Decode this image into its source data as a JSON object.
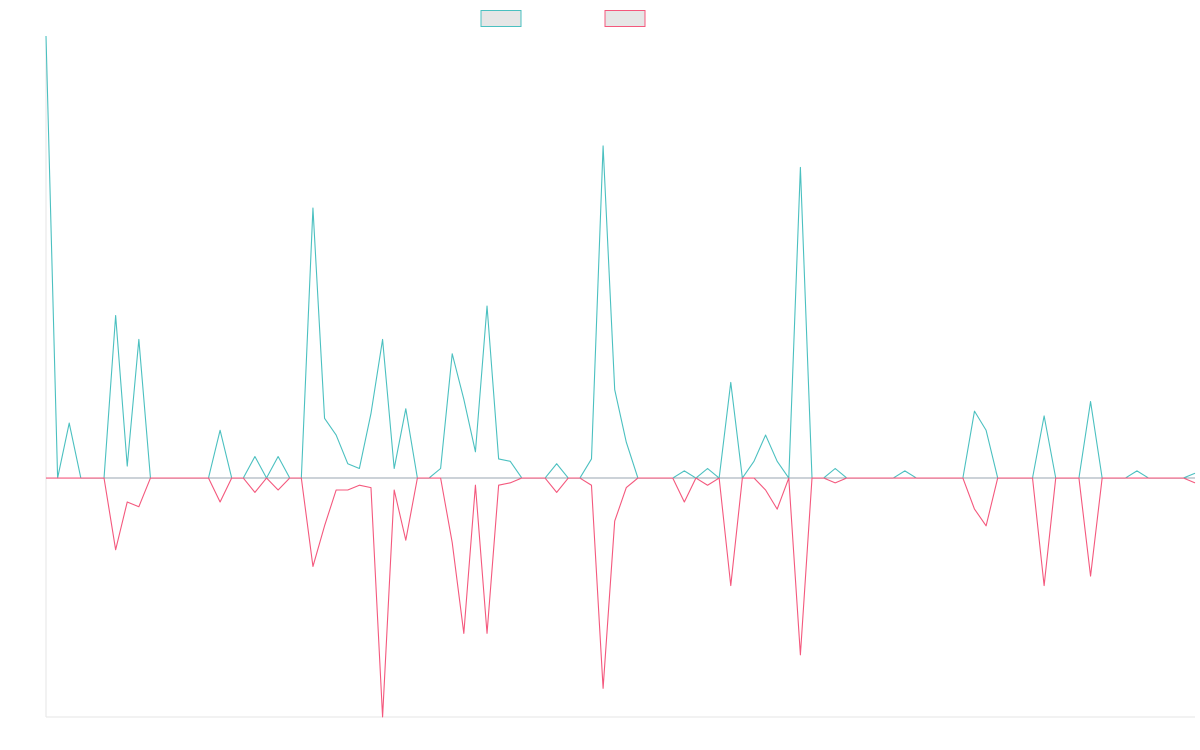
{
  "chart_data": {
    "type": "line",
    "title": "",
    "xlabel": "",
    "ylabel": "",
    "grid": false,
    "legend_position": "top-center",
    "x_count": 100,
    "ylim": [
      -1.0,
      1.85
    ],
    "series": [
      {
        "name": "",
        "color": "#4bc0c0",
        "legend_fill": "#e6e6e6",
        "points": [
          [
            0,
            1.85
          ],
          [
            1,
            0
          ],
          [
            2,
            0.23
          ],
          [
            3,
            0
          ],
          [
            4,
            0
          ],
          [
            5,
            0
          ],
          [
            6,
            0.68
          ],
          [
            7,
            0.05
          ],
          [
            8,
            0.58
          ],
          [
            9,
            0
          ],
          [
            10,
            0
          ],
          [
            11,
            0
          ],
          [
            12,
            0
          ],
          [
            13,
            0
          ],
          [
            14,
            0
          ],
          [
            15,
            0.2
          ],
          [
            16,
            0
          ],
          [
            17,
            0
          ],
          [
            18,
            0.09
          ],
          [
            19,
            0
          ],
          [
            20,
            0.09
          ],
          [
            21,
            0
          ],
          [
            22,
            0
          ],
          [
            23,
            1.13
          ],
          [
            24,
            0.25
          ],
          [
            25,
            0.18
          ],
          [
            26,
            0.06
          ],
          [
            27,
            0.04
          ],
          [
            28,
            0.27
          ],
          [
            29,
            0.58
          ],
          [
            30,
            0.04
          ],
          [
            31,
            0.29
          ],
          [
            32,
            0
          ],
          [
            33,
            0
          ],
          [
            34,
            0.04
          ],
          [
            35,
            0.52
          ],
          [
            36,
            0.33
          ],
          [
            37,
            0.11
          ],
          [
            38,
            0.72
          ],
          [
            39,
            0.08
          ],
          [
            40,
            0.07
          ],
          [
            41,
            0
          ],
          [
            42,
            0
          ],
          [
            43,
            0
          ],
          [
            44,
            0.06
          ],
          [
            45,
            0
          ],
          [
            46,
            0
          ],
          [
            47,
            0.08
          ],
          [
            48,
            1.39
          ],
          [
            49,
            0.37
          ],
          [
            50,
            0.15
          ],
          [
            51,
            0
          ],
          [
            52,
            0
          ],
          [
            53,
            0
          ],
          [
            54,
            0
          ],
          [
            55,
            0.03
          ],
          [
            56,
            0
          ],
          [
            57,
            0.04
          ],
          [
            58,
            0
          ],
          [
            59,
            0.4
          ],
          [
            60,
            0
          ],
          [
            61,
            0.07
          ],
          [
            62,
            0.18
          ],
          [
            63,
            0.07
          ],
          [
            64,
            0
          ],
          [
            65,
            1.3
          ],
          [
            66,
            0
          ],
          [
            67,
            0
          ],
          [
            68,
            0.04
          ],
          [
            69,
            0
          ],
          [
            70,
            0
          ],
          [
            71,
            0
          ],
          [
            72,
            0
          ],
          [
            73,
            0
          ],
          [
            74,
            0.03
          ],
          [
            75,
            0
          ],
          [
            76,
            0
          ],
          [
            77,
            0
          ],
          [
            78,
            0
          ],
          [
            79,
            0
          ],
          [
            80,
            0.28
          ],
          [
            81,
            0.2
          ],
          [
            82,
            0
          ],
          [
            83,
            0
          ],
          [
            84,
            0
          ],
          [
            85,
            0
          ],
          [
            86,
            0.26
          ],
          [
            87,
            0
          ],
          [
            88,
            0
          ],
          [
            89,
            0
          ],
          [
            90,
            0.32
          ],
          [
            91,
            0
          ],
          [
            92,
            0
          ],
          [
            93,
            0
          ],
          [
            94,
            0.03
          ],
          [
            95,
            0
          ],
          [
            96,
            0
          ],
          [
            97,
            0
          ],
          [
            98,
            0
          ],
          [
            99,
            0.02
          ]
        ]
      },
      {
        "name": "",
        "color": "#f4587d",
        "legend_fill": "#e6e6e6",
        "points": [
          [
            0,
            0
          ],
          [
            1,
            0
          ],
          [
            2,
            0
          ],
          [
            3,
            0
          ],
          [
            4,
            0
          ],
          [
            5,
            0
          ],
          [
            6,
            -0.3
          ],
          [
            7,
            -0.1
          ],
          [
            8,
            -0.12
          ],
          [
            9,
            0
          ],
          [
            10,
            0
          ],
          [
            11,
            0
          ],
          [
            12,
            0
          ],
          [
            13,
            0
          ],
          [
            14,
            0
          ],
          [
            15,
            -0.1
          ],
          [
            16,
            0
          ],
          [
            17,
            0
          ],
          [
            18,
            -0.06
          ],
          [
            19,
            0
          ],
          [
            20,
            -0.05
          ],
          [
            21,
            0
          ],
          [
            22,
            0
          ],
          [
            23,
            -0.37
          ],
          [
            24,
            -0.2
          ],
          [
            25,
            -0.05
          ],
          [
            26,
            -0.05
          ],
          [
            27,
            -0.03
          ],
          [
            28,
            -0.04
          ],
          [
            29,
            -1.0
          ],
          [
            30,
            -0.05
          ],
          [
            31,
            -0.26
          ],
          [
            32,
            0
          ],
          [
            33,
            0
          ],
          [
            34,
            0
          ],
          [
            35,
            -0.27
          ],
          [
            36,
            -0.65
          ],
          [
            37,
            -0.03
          ],
          [
            38,
            -0.65
          ],
          [
            39,
            -0.03
          ],
          [
            40,
            -0.02
          ],
          [
            41,
            0
          ],
          [
            42,
            0
          ],
          [
            43,
            0
          ],
          [
            44,
            -0.06
          ],
          [
            45,
            0
          ],
          [
            46,
            0
          ],
          [
            47,
            -0.03
          ],
          [
            48,
            -0.88
          ],
          [
            49,
            -0.18
          ],
          [
            50,
            -0.04
          ],
          [
            51,
            0
          ],
          [
            52,
            0
          ],
          [
            53,
            0
          ],
          [
            54,
            0
          ],
          [
            55,
            -0.1
          ],
          [
            56,
            0
          ],
          [
            57,
            -0.03
          ],
          [
            58,
            0
          ],
          [
            59,
            -0.45
          ],
          [
            60,
            0
          ],
          [
            61,
            0
          ],
          [
            62,
            -0.05
          ],
          [
            63,
            -0.13
          ],
          [
            64,
            0
          ],
          [
            65,
            -0.74
          ],
          [
            66,
            0
          ],
          [
            67,
            0
          ],
          [
            68,
            -0.02
          ],
          [
            69,
            0
          ],
          [
            70,
            0
          ],
          [
            71,
            0
          ],
          [
            72,
            0
          ],
          [
            73,
            0
          ],
          [
            74,
            0
          ],
          [
            75,
            0
          ],
          [
            76,
            0
          ],
          [
            77,
            0
          ],
          [
            78,
            0
          ],
          [
            79,
            0
          ],
          [
            80,
            -0.13
          ],
          [
            81,
            -0.2
          ],
          [
            82,
            0
          ],
          [
            83,
            0
          ],
          [
            84,
            0
          ],
          [
            85,
            0
          ],
          [
            86,
            -0.45
          ],
          [
            87,
            0
          ],
          [
            88,
            0
          ],
          [
            89,
            0
          ],
          [
            90,
            -0.41
          ],
          [
            91,
            0
          ],
          [
            92,
            0
          ],
          [
            93,
            0
          ],
          [
            94,
            0
          ],
          [
            95,
            0
          ],
          [
            96,
            0
          ],
          [
            97,
            0
          ],
          [
            98,
            0
          ],
          [
            99,
            -0.02
          ]
        ]
      }
    ]
  }
}
